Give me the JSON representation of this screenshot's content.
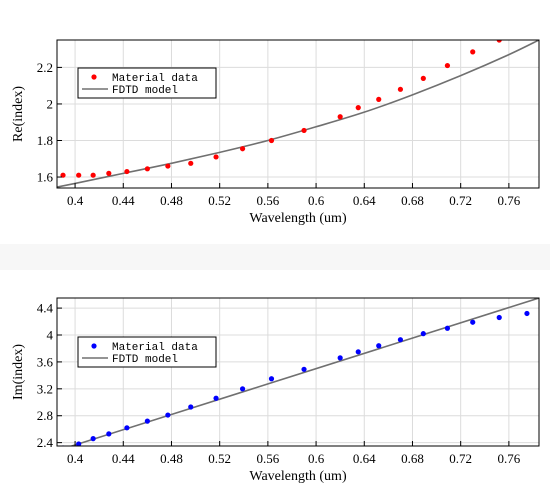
{
  "chart_data": [
    {
      "type": "scatter",
      "xlabel": "Wavelength (um)",
      "ylabel": "Re(index)",
      "xlim": [
        0.385,
        0.785
      ],
      "ylim": [
        1.54,
        2.35
      ],
      "xticks": [
        0.4,
        0.44,
        0.48,
        0.52,
        0.56,
        0.6,
        0.64,
        0.68,
        0.72,
        0.76
      ],
      "xtick_labels": [
        "0.4",
        "0.44",
        "0.48",
        "0.52",
        "0.56",
        "0.6",
        "0.64",
        "0.68",
        "0.72",
        "0.76"
      ],
      "yticks": [
        1.6,
        1.8,
        2.0,
        2.2
      ],
      "ytick_labels": [
        "1.6",
        "1.8",
        "2",
        "2.2"
      ],
      "grid": true,
      "legend": "top-left",
      "series": [
        {
          "name": "Material data",
          "kind": "points",
          "color": "#ff0000",
          "x": [
            0.39,
            0.403,
            0.415,
            0.428,
            0.443,
            0.46,
            0.477,
            0.496,
            0.517,
            0.539,
            0.563,
            0.59,
            0.62,
            0.635,
            0.652,
            0.67,
            0.689,
            0.709,
            0.73,
            0.752
          ],
          "y": [
            1.61,
            1.61,
            1.61,
            1.62,
            1.63,
            1.645,
            1.66,
            1.675,
            1.71,
            1.755,
            1.8,
            1.855,
            1.93,
            1.98,
            2.025,
            2.08,
            2.14,
            2.21,
            2.285,
            2.35
          ]
        },
        {
          "name": "FDTD model",
          "kind": "line",
          "color": "#707070",
          "x": [
            0.385,
            0.4,
            0.44,
            0.48,
            0.52,
            0.56,
            0.6,
            0.64,
            0.68,
            0.72,
            0.76,
            0.785
          ],
          "y": [
            1.545,
            1.565,
            1.62,
            1.675,
            1.735,
            1.8,
            1.875,
            1.955,
            2.05,
            2.155,
            2.27,
            2.35
          ]
        }
      ]
    },
    {
      "type": "scatter",
      "xlabel": "Wavelength (um)",
      "ylabel": "Im(index)",
      "xlim": [
        0.385,
        0.785
      ],
      "ylim": [
        2.35,
        4.55
      ],
      "xticks": [
        0.4,
        0.44,
        0.48,
        0.52,
        0.56,
        0.6,
        0.64,
        0.68,
        0.72,
        0.76
      ],
      "xtick_labels": [
        "0.4",
        "0.44",
        "0.48",
        "0.52",
        "0.56",
        "0.6",
        "0.64",
        "0.68",
        "0.72",
        "0.76"
      ],
      "yticks": [
        2.4,
        2.8,
        3.2,
        3.6,
        4.0,
        4.4
      ],
      "ytick_labels": [
        "2.4",
        "2.8",
        "3.2",
        "3.6",
        "4",
        "4.4"
      ],
      "grid": true,
      "legend": "top-left",
      "series": [
        {
          "name": "Material data",
          "kind": "points",
          "color": "#0000ff",
          "x": [
            0.39,
            0.403,
            0.415,
            0.428,
            0.443,
            0.46,
            0.477,
            0.496,
            0.517,
            0.539,
            0.563,
            0.59,
            0.62,
            0.635,
            0.652,
            0.67,
            0.689,
            0.709,
            0.73,
            0.752,
            0.775
          ],
          "y": [
            2.32,
            2.38,
            2.46,
            2.53,
            2.62,
            2.72,
            2.81,
            2.93,
            3.06,
            3.2,
            3.35,
            3.49,
            3.66,
            3.75,
            3.84,
            3.93,
            4.02,
            4.1,
            4.19,
            4.26,
            4.32
          ]
        },
        {
          "name": "FDTD model",
          "kind": "line",
          "color": "#707070",
          "x": [
            0.385,
            0.785
          ],
          "y": [
            2.28,
            4.55
          ]
        }
      ]
    }
  ]
}
